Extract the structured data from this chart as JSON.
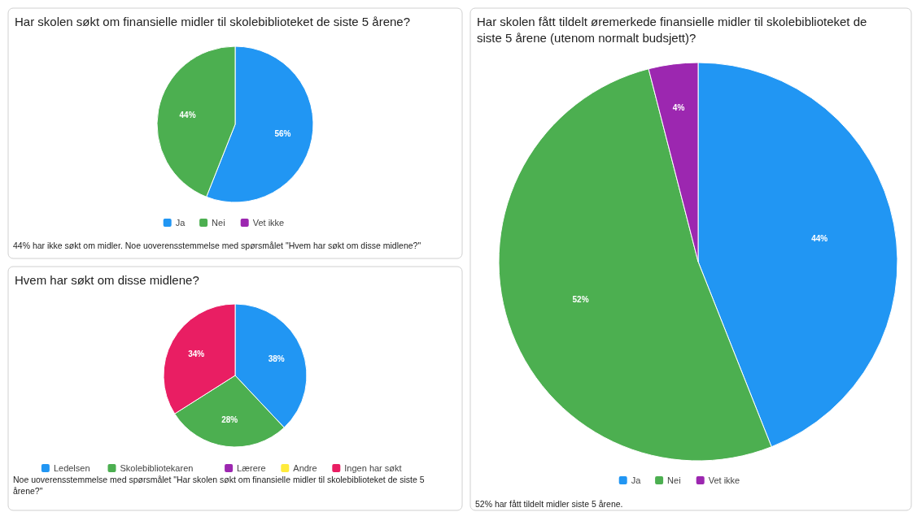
{
  "chart_data": [
    {
      "type": "pie",
      "title": "Har skolen søkt om finansielle midler til skolebiblioteket de siste 5 årene?",
      "categories": [
        "Ja",
        "Nei",
        "Vet ikke"
      ],
      "values": [
        56,
        44,
        0
      ],
      "colors": [
        "#2196f3",
        "#4caf50",
        "#9c27b0"
      ],
      "value_labels": [
        "56%",
        "44%",
        null
      ],
      "legend": "bottom",
      "annotations": [
        "44% har ikke søkt om midler. Noe uoverensstemmelse med spørsmålet \"Hvem har søkt om disse midlene?\""
      ]
    },
    {
      "type": "pie",
      "title": "Hvem har søkt om disse midlene?",
      "categories": [
        "Ledelsen",
        "Skolebibliotekaren",
        "Lærere",
        "Andre",
        "Ingen har søkt"
      ],
      "values": [
        38,
        28,
        0,
        0,
        34
      ],
      "colors": [
        "#2196f3",
        "#4caf50",
        "#9c27b0",
        "#ffeb3b",
        "#e91e63"
      ],
      "value_labels": [
        "38%",
        "28%",
        null,
        null,
        "34%"
      ],
      "legend": "bottom",
      "annotations": [
        "Noe uoverensstemmelse med spørsmålet \"Har skolen søkt om finansielle midler til skolebiblioteket de siste 5 årene?\""
      ]
    },
    {
      "type": "pie",
      "title": "Har skolen fått tildelt øremerkede finansielle midler til skolebiblioteket de siste 5 årene (utenom normalt budsjett)?",
      "categories": [
        "Ja",
        "Nei",
        "Vet ikke"
      ],
      "values": [
        44,
        52,
        4
      ],
      "colors": [
        "#2196f3",
        "#4caf50",
        "#9c27b0"
      ],
      "value_labels": [
        "44%",
        "52%",
        "4%"
      ],
      "legend": "bottom",
      "annotations": [
        "52% har fått tildelt midler siste 5 årene."
      ]
    }
  ]
}
